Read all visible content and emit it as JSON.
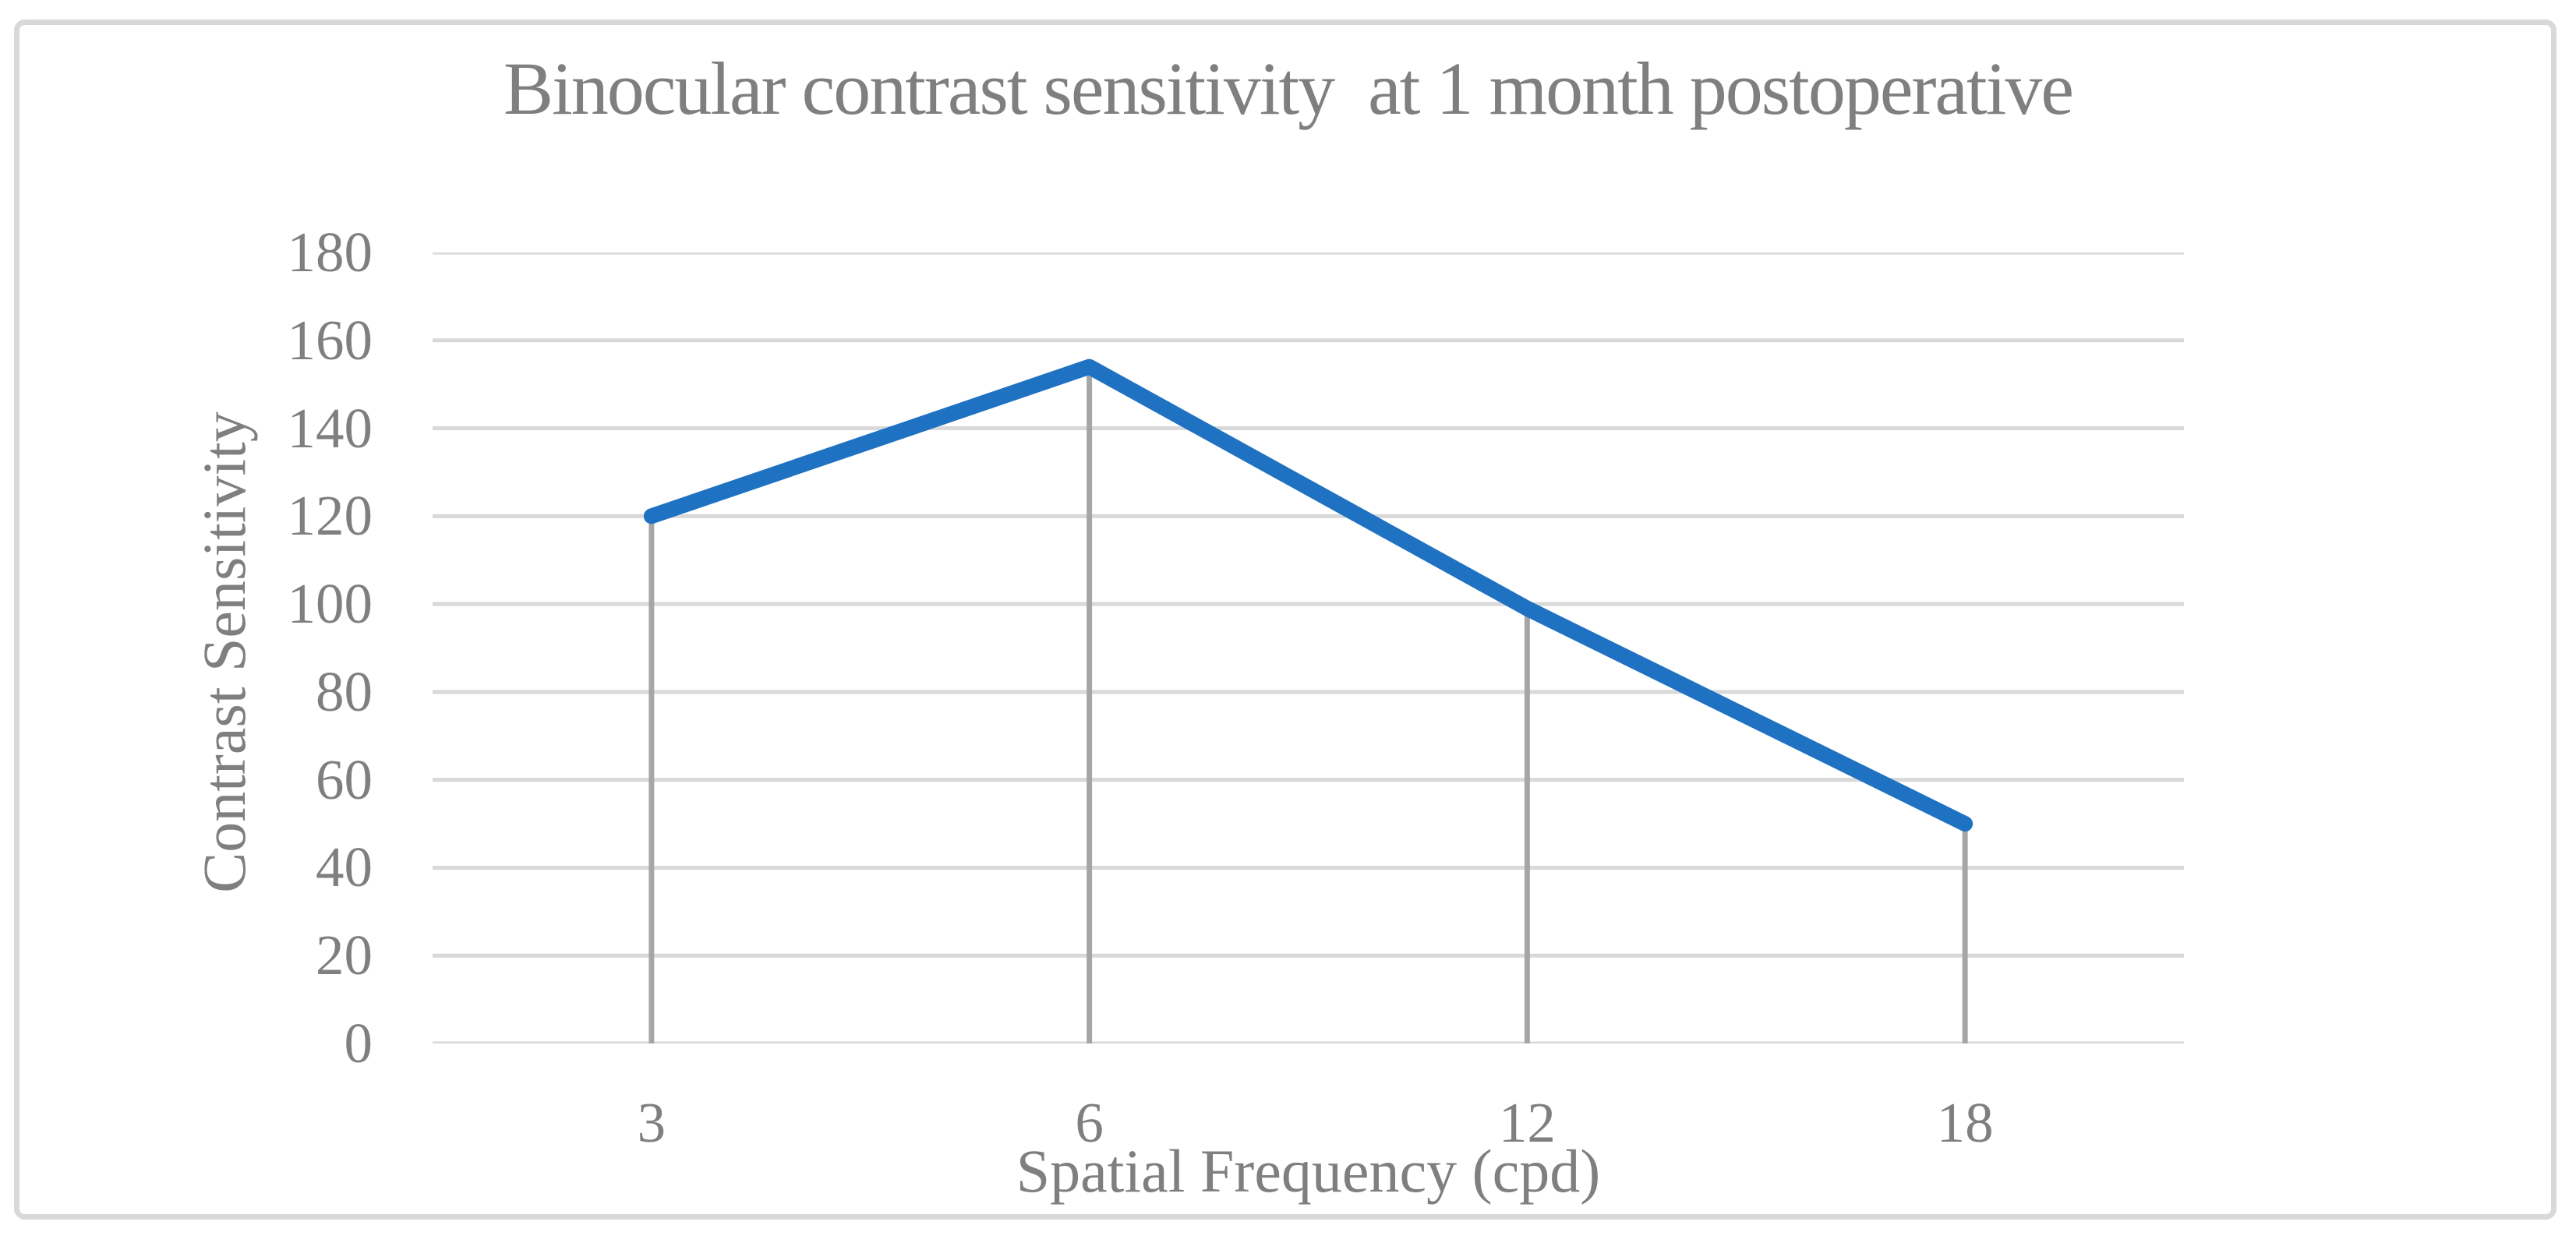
{
  "chart_data": {
    "type": "line",
    "title": "Binocular contrast sensitivity  at 1 month postoperative",
    "categories": [
      "3",
      "6",
      "12",
      "18"
    ],
    "values": [
      120,
      154,
      99,
      50
    ],
    "xlabel": "Spatial Frequency (cpd)",
    "ylabel": "Contrast Sensitivity",
    "ylim": [
      0,
      180
    ],
    "ytick_step": 20,
    "ytick_labels": [
      "0",
      "20",
      "40",
      "60",
      "80",
      "100",
      "120",
      "140",
      "160",
      "180"
    ],
    "grid": true,
    "legend": false,
    "droplines": true,
    "colors": {
      "line": "#1F72C2",
      "dropline": "#A6A6A6",
      "gridline": "#D9D9D9",
      "text": "#7F7F7F",
      "frame_border": "#D9D9D9",
      "background": "#FFFFFF"
    }
  }
}
